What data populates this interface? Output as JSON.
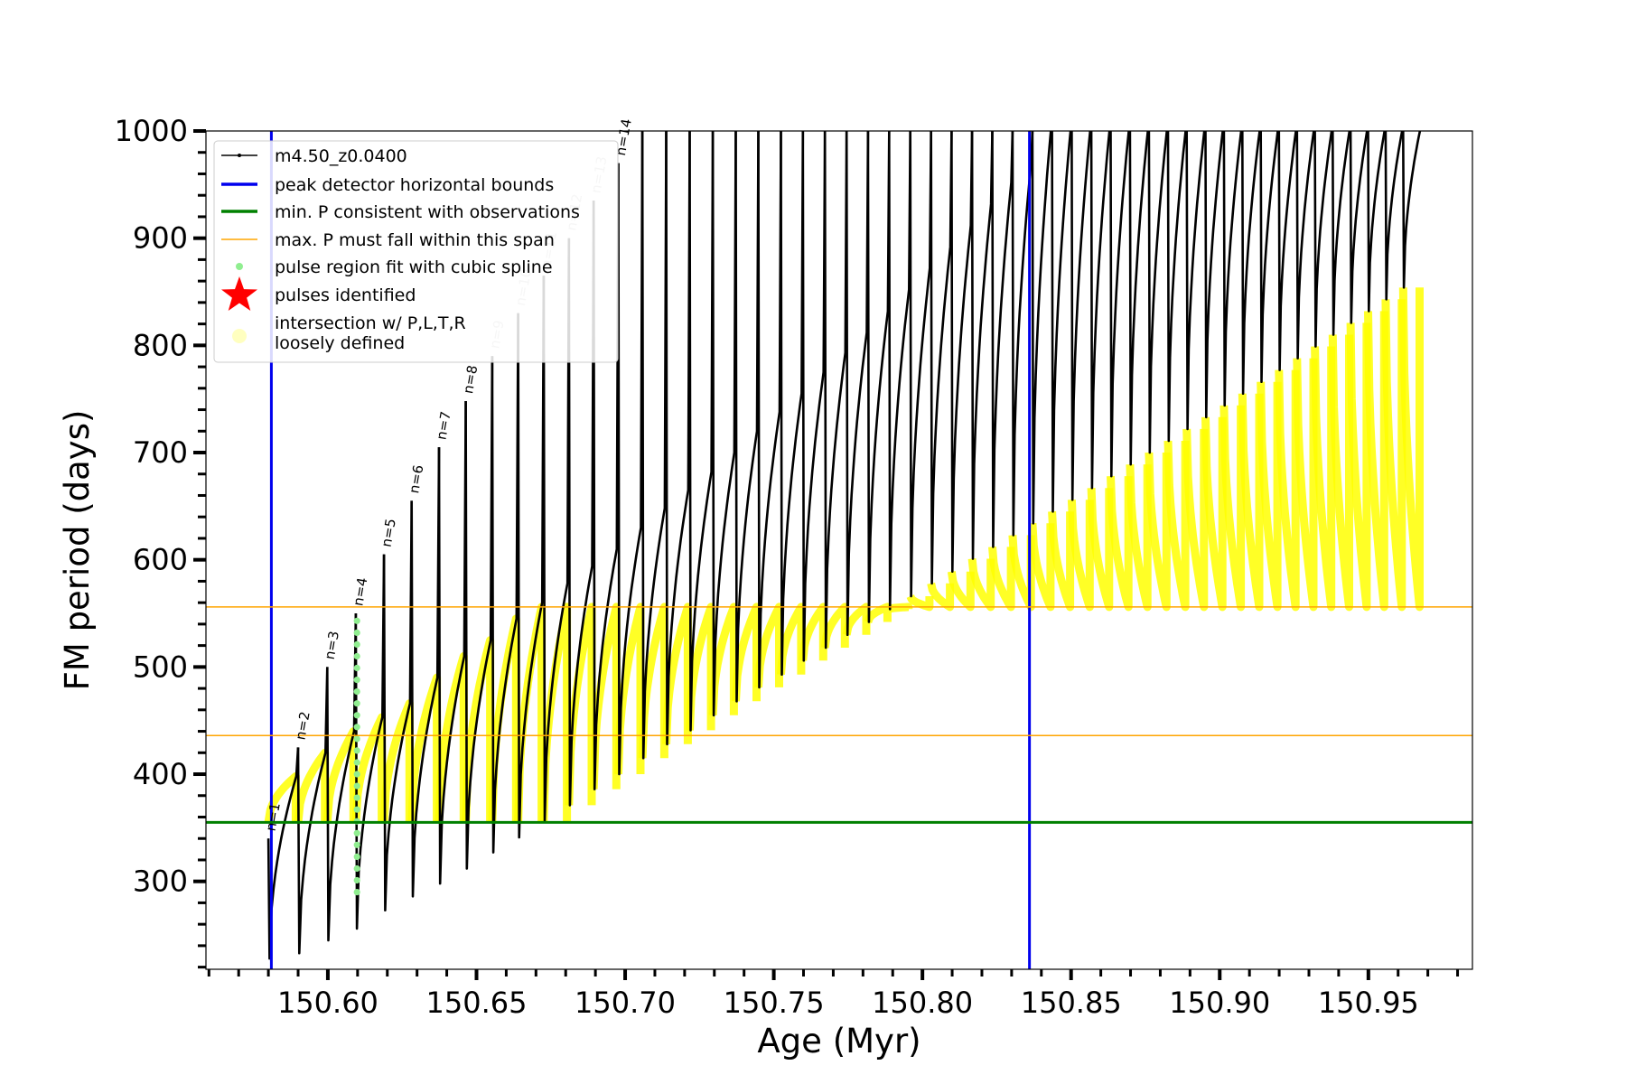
{
  "chart_data": {
    "type": "line",
    "xlabel": "Age (Myr)",
    "ylabel": "FM period (days)",
    "xlim": [
      150.559,
      150.985
    ],
    "ylim": [
      218,
      1000
    ],
    "xticks": [
      150.6,
      150.65,
      150.7,
      150.75,
      150.8,
      150.85,
      150.9,
      150.95
    ],
    "xtick_labels": [
      "150.60",
      "150.65",
      "150.70",
      "150.75",
      "150.80",
      "150.85",
      "150.90",
      "150.95"
    ],
    "yticks": [
      300,
      400,
      500,
      600,
      700,
      800,
      900,
      1000
    ],
    "ytick_labels": [
      "300",
      "400",
      "500",
      "600",
      "700",
      "800",
      "900",
      "1000"
    ],
    "legend_position": "top-left",
    "legend": [
      {
        "label": "m4.50_z0.0400",
        "color": "#000000",
        "marker": "line-dot"
      },
      {
        "label": "peak detector horizontal bounds",
        "color": "#0000ee",
        "marker": "line"
      },
      {
        "label": "min. P consistent with observations",
        "color": "#008000",
        "marker": "line"
      },
      {
        "label": "max. P must fall within this span",
        "color": "#ffa500",
        "marker": "thin-line"
      },
      {
        "label": "pulse region fit with cubic spline",
        "color": "#90ee90",
        "marker": "dot"
      },
      {
        "label": "pulses identified",
        "color": "#ff0000",
        "marker": "star"
      },
      {
        "label": "intersection w/ P,L,T,R\nloosely defined",
        "color": "#ffffc0",
        "marker": "circle"
      }
    ],
    "vertical_lines": [
      {
        "x": 150.581,
        "color": "#0000ee"
      },
      {
        "x": 150.836,
        "color": "#0000ee"
      }
    ],
    "horizontal_lines": [
      {
        "y": 355,
        "color": "#008000"
      },
      {
        "y": 436,
        "color": "#ffa500"
      },
      {
        "y": 556,
        "color": "#ffa500"
      }
    ],
    "pulse_labels": [
      "n=1",
      "n=2",
      "n=3",
      "n=4",
      "n=5",
      "n=6",
      "n=7",
      "n=8",
      "n=9",
      "n=10",
      "n=11",
      "n=12",
      "n=13",
      "n=14"
    ],
    "series": [
      {
        "name": "m4.50_z0.0400",
        "color": "#000000",
        "pulse_starts": [
          150.58,
          150.59,
          150.5998,
          150.6094,
          150.6189,
          150.6282,
          150.6374,
          150.6464,
          150.6553,
          150.664,
          150.6726,
          150.6811,
          150.6894,
          150.6977,
          150.7058,
          150.7138,
          150.7217,
          150.7295,
          150.7372,
          150.7448,
          150.7524,
          150.7598,
          150.7672,
          150.7745,
          150.7817,
          150.7888,
          150.7959,
          150.8029,
          150.8098,
          150.8167,
          150.8235,
          150.8303,
          150.837,
          150.8436,
          150.8502,
          150.8568,
          150.8633,
          150.8698,
          150.8762,
          150.8826,
          150.8889,
          150.8952,
          150.9014,
          150.9076,
          150.9138,
          150.9199,
          150.926,
          150.932,
          150.938,
          150.944,
          150.9499,
          150.9558,
          150.9617
        ],
        "pulse_min_P": [
          228,
          233,
          245,
          256,
          273,
          286,
          298,
          312,
          327,
          341,
          356,
          371,
          386,
          400,
          415,
          428,
          441,
          455,
          468,
          481,
          493,
          506,
          518,
          530,
          542,
          554,
          566,
          578,
          589,
          601,
          612,
          623,
          634,
          645,
          656,
          667,
          678,
          689,
          700,
          711,
          722,
          733,
          744,
          755,
          766,
          777,
          788,
          799,
          810,
          821,
          832,
          843,
          854
        ],
        "pulse_max_P": [
          398,
          420,
          440,
          453,
          466,
          490,
          510,
          525,
          545,
          560,
          578,
          594,
          610,
          630,
          648,
          665,
          682,
          700,
          720,
          738,
          755,
          775,
          793,
          812,
          832,
          852,
          872,
          892,
          912,
          932,
          952,
          972,
          1000,
          1000,
          1000,
          1000,
          1000,
          1000,
          1000,
          1000,
          1000,
          1000,
          1000,
          1000,
          1000,
          1000,
          1000,
          1000,
          1000,
          1000,
          1000,
          1000,
          1000
        ],
        "spike_P": [
          340,
          425,
          500,
          550,
          605,
          655,
          705,
          748,
          790,
          830,
          865,
          900,
          935,
          970,
          1000,
          1000,
          1000,
          1000,
          1000,
          1000,
          1000,
          1000,
          1000,
          1000,
          1000,
          1000,
          1000,
          1000,
          1000,
          1000,
          1000,
          1000,
          1000,
          1000,
          1000,
          1000,
          1000,
          1000,
          1000,
          1000,
          1000,
          1000,
          1000,
          1000,
          1000,
          1000,
          1000,
          1000,
          1000,
          1000,
          1000,
          1000,
          1000
        ]
      },
      {
        "name": "intersection w/ P,L,T,R loosely defined",
        "color": "#ffff00",
        "P_range": [
          355,
          556
        ]
      }
    ]
  }
}
